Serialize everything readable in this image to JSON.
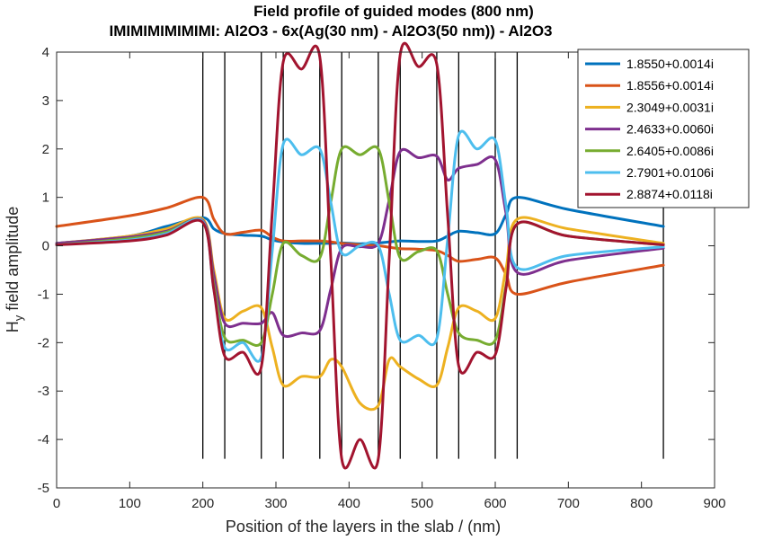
{
  "chart_data": {
    "type": "line",
    "title": "Field profile of guided modes (800 nm)",
    "subtitle": "IMIMIMIMIMIMI: Al2O3 - 6x(Ag(30 nm) - Al2O3(50 nm)) - Al2O3",
    "xlabel": "Position of the layers in the slab / (nm)",
    "ylabel_main": "H",
    "ylabel_sub": "y",
    "ylabel_rest": " field amplitude",
    "xlim": [
      0,
      900
    ],
    "ylim": [
      -5,
      4
    ],
    "xticks": [
      "0",
      "100",
      "200",
      "300",
      "400",
      "500",
      "600",
      "700",
      "800",
      "900"
    ],
    "yticks": [
      "4",
      "3",
      "2",
      "1",
      "0",
      "-1",
      "-2",
      "-3",
      "-4",
      "-5"
    ],
    "legend_position": "top-right",
    "interfaces": [
      200,
      230,
      280,
      310,
      360,
      390,
      440,
      470,
      520,
      550,
      600,
      630,
      830
    ],
    "interface_line_range": [
      -4.4,
      4.0
    ],
    "series": [
      {
        "name": "1.8550+0.0014i",
        "color": "#0072BD",
        "points": [
          [
            0,
            0.05
          ],
          [
            100,
            0.2
          ],
          [
            150,
            0.4
          ],
          [
            200,
            0.58
          ],
          [
            215,
            0.35
          ],
          [
            230,
            0.25
          ],
          [
            255,
            0.22
          ],
          [
            280,
            0.2
          ],
          [
            295,
            0.12
          ],
          [
            310,
            0.08
          ],
          [
            335,
            0.05
          ],
          [
            360,
            0.05
          ],
          [
            375,
            0.05
          ],
          [
            390,
            0.06
          ],
          [
            415,
            0.04
          ],
          [
            440,
            0.06
          ],
          [
            455,
            0.08
          ],
          [
            470,
            0.1
          ],
          [
            495,
            0.09
          ],
          [
            520,
            0.1
          ],
          [
            535,
            0.2
          ],
          [
            550,
            0.3
          ],
          [
            575,
            0.27
          ],
          [
            600,
            0.25
          ],
          [
            615,
            0.65
          ],
          [
            630,
            1.0
          ],
          [
            700,
            0.75
          ],
          [
            830,
            0.4
          ]
        ]
      },
      {
        "name": "1.8556+0.0014i",
        "color": "#D95319",
        "points": [
          [
            0,
            0.4
          ],
          [
            100,
            0.62
          ],
          [
            150,
            0.78
          ],
          [
            200,
            1.0
          ],
          [
            215,
            0.55
          ],
          [
            230,
            0.25
          ],
          [
            255,
            0.28
          ],
          [
            280,
            0.32
          ],
          [
            295,
            0.18
          ],
          [
            310,
            0.1
          ],
          [
            335,
            0.1
          ],
          [
            360,
            0.1
          ],
          [
            375,
            0.08
          ],
          [
            390,
            0.05
          ],
          [
            415,
            0.02
          ],
          [
            440,
            0.0
          ],
          [
            455,
            -0.03
          ],
          [
            470,
            -0.06
          ],
          [
            495,
            -0.07
          ],
          [
            520,
            -0.1
          ],
          [
            535,
            -0.2
          ],
          [
            550,
            -0.32
          ],
          [
            575,
            -0.28
          ],
          [
            600,
            -0.25
          ],
          [
            615,
            -0.6
          ],
          [
            630,
            -1.0
          ],
          [
            700,
            -0.75
          ],
          [
            830,
            -0.4
          ]
        ]
      },
      {
        "name": "2.3049+0.0031i",
        "color": "#EDB120",
        "points": [
          [
            0,
            0.05
          ],
          [
            100,
            0.2
          ],
          [
            150,
            0.35
          ],
          [
            200,
            0.55
          ],
          [
            215,
            -0.5
          ],
          [
            230,
            -1.5
          ],
          [
            255,
            -1.35
          ],
          [
            280,
            -1.28
          ],
          [
            295,
            -2.1
          ],
          [
            310,
            -2.88
          ],
          [
            335,
            -2.7
          ],
          [
            360,
            -2.7
          ],
          [
            375,
            -2.35
          ],
          [
            390,
            -2.5
          ],
          [
            415,
            -3.25
          ],
          [
            440,
            -3.3
          ],
          [
            455,
            -2.35
          ],
          [
            470,
            -2.5
          ],
          [
            495,
            -2.75
          ],
          [
            520,
            -2.88
          ],
          [
            535,
            -2.1
          ],
          [
            550,
            -1.28
          ],
          [
            575,
            -1.35
          ],
          [
            600,
            -1.5
          ],
          [
            615,
            -0.45
          ],
          [
            630,
            0.55
          ],
          [
            700,
            0.35
          ],
          [
            830,
            0.05
          ]
        ]
      },
      {
        "name": "2.4633+0.0060i",
        "color": "#7E2F8E",
        "points": [
          [
            0,
            0.05
          ],
          [
            100,
            0.18
          ],
          [
            150,
            0.3
          ],
          [
            200,
            0.52
          ],
          [
            215,
            -0.6
          ],
          [
            230,
            -1.6
          ],
          [
            255,
            -1.6
          ],
          [
            280,
            -1.6
          ],
          [
            295,
            -1.38
          ],
          [
            310,
            -1.85
          ],
          [
            335,
            -1.8
          ],
          [
            360,
            -1.75
          ],
          [
            375,
            -0.9
          ],
          [
            390,
            -0.05
          ],
          [
            415,
            -0.02
          ],
          [
            440,
            0.05
          ],
          [
            455,
            0.95
          ],
          [
            470,
            1.95
          ],
          [
            495,
            1.82
          ],
          [
            520,
            1.85
          ],
          [
            535,
            1.36
          ],
          [
            550,
            1.6
          ],
          [
            575,
            1.68
          ],
          [
            600,
            1.78
          ],
          [
            615,
            0.65
          ],
          [
            630,
            -0.55
          ],
          [
            700,
            -0.3
          ],
          [
            830,
            -0.05
          ]
        ]
      },
      {
        "name": "2.6405+0.0086i",
        "color": "#77AC30",
        "points": [
          [
            0,
            0.02
          ],
          [
            100,
            0.15
          ],
          [
            150,
            0.28
          ],
          [
            200,
            0.5
          ],
          [
            215,
            -0.8
          ],
          [
            230,
            -1.9
          ],
          [
            255,
            -1.95
          ],
          [
            280,
            -2.0
          ],
          [
            295,
            -1.0
          ],
          [
            310,
            0.05
          ],
          [
            335,
            -0.2
          ],
          [
            360,
            -0.25
          ],
          [
            375,
            0.9
          ],
          [
            390,
            2.0
          ],
          [
            415,
            1.88
          ],
          [
            440,
            2.0
          ],
          [
            455,
            0.9
          ],
          [
            470,
            -0.25
          ],
          [
            495,
            -0.12
          ],
          [
            520,
            -0.1
          ],
          [
            535,
            -1.0
          ],
          [
            550,
            -1.8
          ],
          [
            575,
            -1.95
          ],
          [
            600,
            -1.95
          ],
          [
            615,
            -0.8
          ],
          [
            630,
            0.45
          ],
          [
            700,
            0.2
          ],
          [
            830,
            0.02
          ]
        ]
      },
      {
        "name": "2.7901+0.0106i",
        "color": "#4DBEEE",
        "points": [
          [
            0,
            0.02
          ],
          [
            100,
            0.12
          ],
          [
            150,
            0.25
          ],
          [
            200,
            0.5
          ],
          [
            215,
            -0.9
          ],
          [
            230,
            -2.1
          ],
          [
            255,
            -2.0
          ],
          [
            280,
            -2.3
          ],
          [
            295,
            -0.1
          ],
          [
            310,
            2.1
          ],
          [
            335,
            1.88
          ],
          [
            360,
            2.0
          ],
          [
            375,
            0.9
          ],
          [
            390,
            -0.15
          ],
          [
            415,
            0.0
          ],
          [
            440,
            0.0
          ],
          [
            455,
            -1.0
          ],
          [
            470,
            -1.95
          ],
          [
            495,
            -1.85
          ],
          [
            520,
            -1.92
          ],
          [
            535,
            0.15
          ],
          [
            550,
            2.28
          ],
          [
            575,
            2.0
          ],
          [
            600,
            2.18
          ],
          [
            615,
            0.8
          ],
          [
            630,
            -0.45
          ],
          [
            700,
            -0.2
          ],
          [
            830,
            -0.02
          ]
        ]
      },
      {
        "name": "2.8874+0.0118i",
        "color": "#A2142F",
        "points": [
          [
            0,
            0.02
          ],
          [
            100,
            0.1
          ],
          [
            150,
            0.22
          ],
          [
            200,
            0.48
          ],
          [
            215,
            -0.9
          ],
          [
            230,
            -2.28
          ],
          [
            255,
            -2.2
          ],
          [
            280,
            -2.5
          ],
          [
            295,
            0.7
          ],
          [
            310,
            3.8
          ],
          [
            335,
            3.65
          ],
          [
            360,
            3.9
          ],
          [
            375,
            -0.25
          ],
          [
            390,
            -4.4
          ],
          [
            415,
            -4.0
          ],
          [
            440,
            -4.4
          ],
          [
            455,
            -0.25
          ],
          [
            470,
            3.95
          ],
          [
            495,
            3.7
          ],
          [
            520,
            3.75
          ],
          [
            535,
            0.6
          ],
          [
            550,
            -2.48
          ],
          [
            575,
            -2.2
          ],
          [
            600,
            -2.25
          ],
          [
            615,
            -0.85
          ],
          [
            630,
            0.45
          ],
          [
            700,
            0.2
          ],
          [
            830,
            0.02
          ]
        ]
      }
    ]
  }
}
